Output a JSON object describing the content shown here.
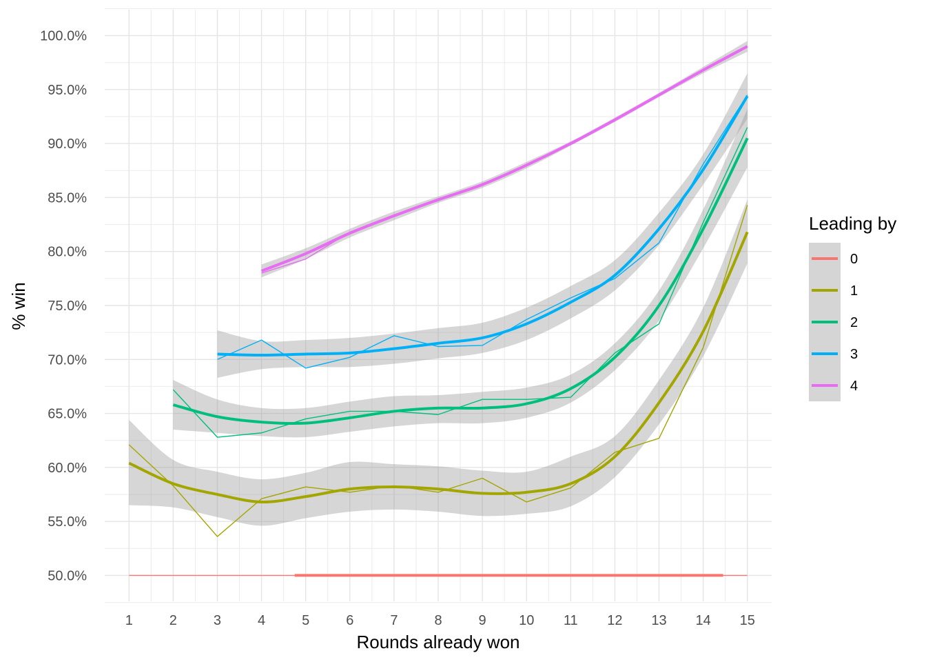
{
  "chart_data": {
    "type": "line",
    "xlabel": "Rounds already won",
    "ylabel": "% win",
    "xlim": [
      0.45,
      15.55
    ],
    "ylim": [
      47.6,
      102.4
    ],
    "x_ticks": [
      1,
      2,
      3,
      4,
      5,
      6,
      7,
      8,
      9,
      10,
      11,
      12,
      13,
      14,
      15
    ],
    "y_ticks": [
      50,
      55,
      60,
      65,
      70,
      75,
      80,
      85,
      90,
      95,
      100
    ],
    "y_tick_labels": [
      "50.0%",
      "55.0%",
      "60.0%",
      "65.0%",
      "70.0%",
      "75.0%",
      "80.0%",
      "85.0%",
      "90.0%",
      "95.0%",
      "100.0%"
    ],
    "grid": true,
    "legend": {
      "title": "Leading by",
      "position": "right"
    },
    "series": [
      {
        "name": "0",
        "color": "#F8766D",
        "x": [
          1,
          2,
          3,
          4,
          5,
          6,
          7,
          8,
          9,
          10,
          11,
          12,
          13,
          14,
          15
        ],
        "observed": [
          50,
          50,
          50,
          50,
          50,
          50,
          50,
          50,
          50,
          50,
          50,
          50,
          50,
          50,
          50
        ],
        "smooth_x": [
          4.75,
          14.45
        ],
        "smooth": [
          50,
          50
        ],
        "band_lower": [
          50,
          50
        ],
        "band_upper": [
          50,
          50
        ]
      },
      {
        "name": "1",
        "color": "#A3A500",
        "x": [
          1,
          2,
          3,
          4,
          5,
          6,
          7,
          8,
          9,
          10,
          11,
          12,
          13,
          14,
          15
        ],
        "observed": [
          62.1,
          58.3,
          53.6,
          57.1,
          58.2,
          57.7,
          58.3,
          57.7,
          59.0,
          56.8,
          58.1,
          61.4,
          62.7,
          71.1,
          84.3
        ],
        "smooth_x": [
          1,
          2,
          3,
          4,
          5,
          6,
          7,
          8,
          9,
          10,
          11,
          12,
          13,
          14,
          15
        ],
        "smooth": [
          60.4,
          58.5,
          57.5,
          56.8,
          57.3,
          58.0,
          58.2,
          58.0,
          57.6,
          57.7,
          58.5,
          61.0,
          66.0,
          72.6,
          81.8
        ],
        "band_lower": [
          56.5,
          56.3,
          55.4,
          54.6,
          55.3,
          55.9,
          56.1,
          55.9,
          55.5,
          55.7,
          56.4,
          59.1,
          64.0,
          70.3,
          78.9
        ],
        "band_upper": [
          64.4,
          60.7,
          59.6,
          58.9,
          59.5,
          60.5,
          60.3,
          60.1,
          59.7,
          59.6,
          61.0,
          62.9,
          68.1,
          74.8,
          84.8
        ]
      },
      {
        "name": "2",
        "color": "#00BF7D",
        "x": [
          2,
          3,
          4,
          5,
          6,
          7,
          8,
          9,
          10,
          11,
          12,
          13,
          14,
          15
        ],
        "observed": [
          67.2,
          62.8,
          63.2,
          64.5,
          65.2,
          65.2,
          64.9,
          66.3,
          66.3,
          66.5,
          70.6,
          73.3,
          82.7,
          91.5
        ],
        "smooth_x": [
          2,
          3,
          4,
          5,
          6,
          7,
          8,
          9,
          10,
          11,
          12,
          13,
          14,
          15
        ],
        "smooth": [
          65.8,
          64.7,
          64.2,
          64.1,
          64.6,
          65.2,
          65.5,
          65.5,
          65.9,
          67.3,
          70.2,
          75.0,
          82.1,
          90.5
        ],
        "band_lower": [
          63.5,
          63.2,
          62.9,
          62.8,
          63.3,
          63.8,
          64.1,
          64.1,
          64.6,
          66.0,
          69.0,
          73.6,
          80.3,
          87.8
        ],
        "band_upper": [
          68.1,
          66.3,
          65.5,
          65.5,
          66.1,
          66.6,
          66.7,
          67.0,
          67.4,
          68.6,
          71.5,
          76.4,
          83.9,
          93.2
        ]
      },
      {
        "name": "3",
        "color": "#00B0F6",
        "x": [
          3,
          4,
          5,
          6,
          7,
          8,
          9,
          10,
          11,
          12,
          13,
          14,
          15
        ],
        "observed": [
          70.0,
          71.8,
          69.2,
          70.2,
          72.2,
          71.2,
          71.3,
          73.7,
          75.7,
          77.5,
          80.8,
          88.1,
          94.5
        ],
        "smooth_x": [
          3,
          4,
          5,
          6,
          7,
          8,
          9,
          10,
          11,
          12,
          13,
          14,
          15
        ],
        "smooth": [
          70.5,
          70.4,
          70.5,
          70.6,
          71.0,
          71.5,
          72.0,
          73.3,
          75.3,
          77.8,
          82.1,
          87.6,
          94.4
        ],
        "band_lower": [
          68.3,
          69.1,
          69.3,
          69.3,
          69.6,
          70.1,
          70.6,
          71.8,
          73.8,
          76.4,
          80.6,
          86.2,
          92.3
        ],
        "band_upper": [
          72.7,
          71.7,
          71.8,
          72.0,
          72.4,
          72.9,
          73.4,
          74.8,
          76.8,
          79.2,
          83.6,
          89.0,
          96.5
        ]
      },
      {
        "name": "4",
        "color": "#E76BF3",
        "x": [
          4,
          5,
          6,
          7,
          8,
          9,
          10,
          11,
          12,
          13,
          14,
          15
        ],
        "observed": [
          78.0,
          79.3,
          81.8,
          83.4,
          84.7,
          86.1,
          88.0,
          90.0,
          92.2,
          94.5,
          96.8,
          99.0
        ],
        "smooth_x": [
          4,
          5,
          6,
          7,
          8,
          9,
          10,
          11,
          12,
          13,
          14,
          15
        ],
        "smooth": [
          78.2,
          79.8,
          81.7,
          83.3,
          84.8,
          86.2,
          88.0,
          90.0,
          92.2,
          94.5,
          96.8,
          99.0
        ],
        "band_lower": [
          77.6,
          79.3,
          81.3,
          82.9,
          84.5,
          85.9,
          87.7,
          89.8,
          92.0,
          94.3,
          96.5,
          98.5
        ],
        "band_upper": [
          78.8,
          80.3,
          82.1,
          83.7,
          85.1,
          86.5,
          88.3,
          90.2,
          92.4,
          94.7,
          97.1,
          99.5
        ]
      }
    ]
  }
}
